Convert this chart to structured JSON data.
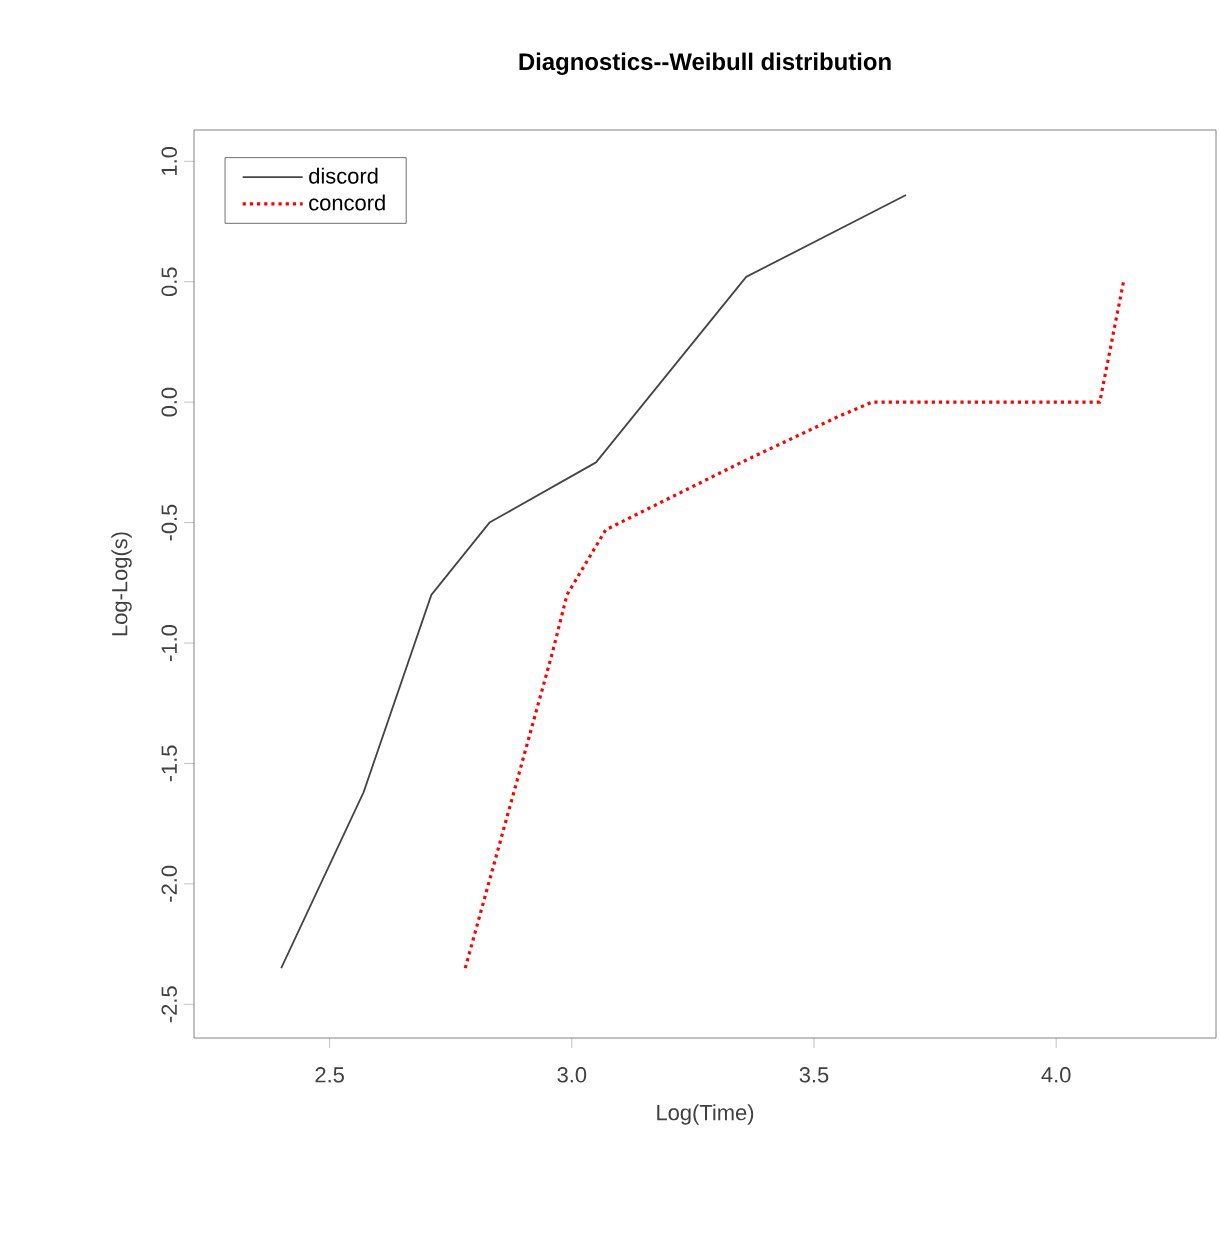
{
  "chart_data": {
    "type": "line",
    "title": "Diagnostics--Weibull distribution",
    "xlabel": "Log(Time)",
    "ylabel": "Log-Log(s)",
    "xlim": [
      2.22,
      4.33
    ],
    "ylim": [
      -2.64,
      1.13
    ],
    "xticks": [
      2.5,
      {
        "value": 3,
        "label": "3.0"
      },
      3.5,
      {
        "value": 4,
        "label": "4.0"
      }
    ],
    "yticks": [
      -2.5,
      {
        "value": -2,
        "label": "-2.0"
      },
      -1.5,
      {
        "value": -1,
        "label": "-1.0"
      },
      -0.5,
      {
        "value": 0,
        "label": "0.0"
      },
      0.5,
      {
        "value": 1,
        "label": "1.0"
      }
    ],
    "legend": "top left",
    "grid": false,
    "marker": "none",
    "series": [
      {
        "name": "discord",
        "color": "#444444",
        "line_style": "solid",
        "x": [
          2.4,
          2.57,
          2.71,
          2.83,
          3.05,
          3.36,
          3.69
        ],
        "values": [
          -2.35,
          -1.62,
          -0.8,
          -0.5,
          -0.25,
          0.52,
          0.86
        ]
      },
      {
        "name": "concord",
        "color": "#ff0000",
        "line_style": "dotted",
        "x": [
          2.78,
          2.96,
          2.99,
          3.07,
          3.35,
          3.55,
          3.62,
          4.09,
          4.14
        ],
        "values": [
          -2.35,
          -1.04,
          -0.8,
          -0.53,
          -0.25,
          -0.06,
          0.0,
          0.0,
          0.51
        ]
      }
    ]
  }
}
